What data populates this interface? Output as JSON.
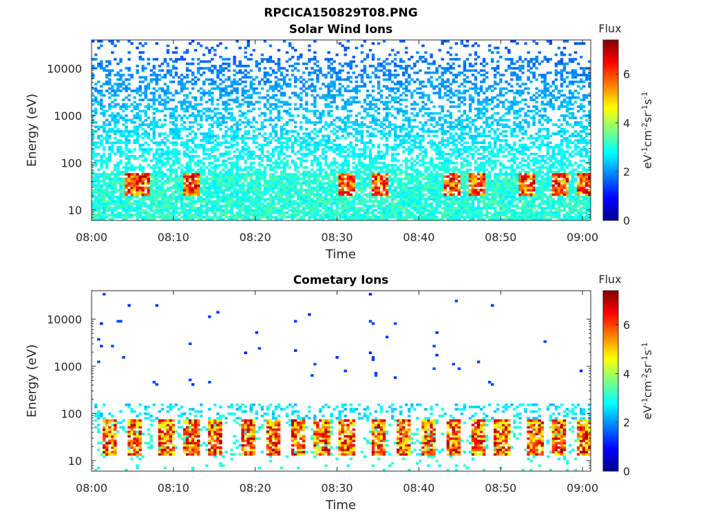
{
  "figure": {
    "title": "RPCICA150829T08.PNG"
  },
  "chart_data": [
    {
      "type": "heatmap",
      "title": "Solar Wind Ions",
      "xlabel": "Time",
      "ylabel": "Energy (eV)",
      "x_range": [
        "08:00",
        "09:01"
      ],
      "xticks": [
        "08:00",
        "08:10",
        "08:20",
        "08:30",
        "08:40",
        "08:50",
        "09:00"
      ],
      "ylim": [
        6,
        40000
      ],
      "y_scale": "log",
      "yticks": [
        "10",
        "100",
        "1000",
        "10000"
      ],
      "ytick_values": [
        10,
        100,
        1000,
        10000
      ],
      "colorbar": {
        "label": "Flux",
        "units": "eV-1cm-2sr-1s-1",
        "range": [
          0,
          7.4
        ],
        "ticks": [
          "0",
          "2",
          "4",
          "6"
        ],
        "tick_values": [
          0,
          2,
          4,
          6
        ],
        "colormap": "jet"
      },
      "features": {
        "background_flux_at_10000eV": 1.2,
        "background_flux_at_1000eV": 1.6,
        "background_flux_at_100eV": 2.6,
        "low_energy_band_eV": [
          6,
          50
        ],
        "peak_times": [
          "08:05",
          "08:06",
          "08:12",
          "08:31",
          "08:35",
          "08:44",
          "08:47",
          "08:53",
          "08:57",
          "09:00"
        ],
        "peak_energy_eV": 35,
        "peak_flux": 6.8
      }
    },
    {
      "type": "heatmap",
      "title": "Cometary Ions",
      "xlabel": "Time",
      "ylabel": "Energy (eV)",
      "x_range": [
        "08:00",
        "09:01"
      ],
      "xticks": [
        "08:00",
        "08:10",
        "08:20",
        "08:30",
        "08:40",
        "08:50",
        "09:00"
      ],
      "ylim": [
        6,
        40000
      ],
      "y_scale": "log",
      "yticks": [
        "10",
        "100",
        "1000",
        "10000"
      ],
      "ytick_values": [
        10,
        100,
        1000,
        10000
      ],
      "colorbar": {
        "label": "Flux",
        "units": "eV-1cm-2sr-1s-1",
        "range": [
          0,
          7.4
        ],
        "ticks": [
          "0",
          "2",
          "4",
          "6"
        ],
        "tick_values": [
          0,
          2,
          4,
          6
        ],
        "colormap": "jet"
      },
      "features": {
        "sparse_high_energy_flux": 1.2,
        "burst_band_eV": [
          15,
          60
        ],
        "burst_times": [
          "08:02",
          "08:05",
          "08:09",
          "08:12",
          "08:15",
          "08:19",
          "08:22",
          "08:25",
          "08:28",
          "08:31",
          "08:35",
          "08:38",
          "08:41",
          "08:44",
          "08:47",
          "08:50",
          "08:54",
          "08:57",
          "09:00"
        ],
        "peak_flux": 7.0
      }
    }
  ]
}
